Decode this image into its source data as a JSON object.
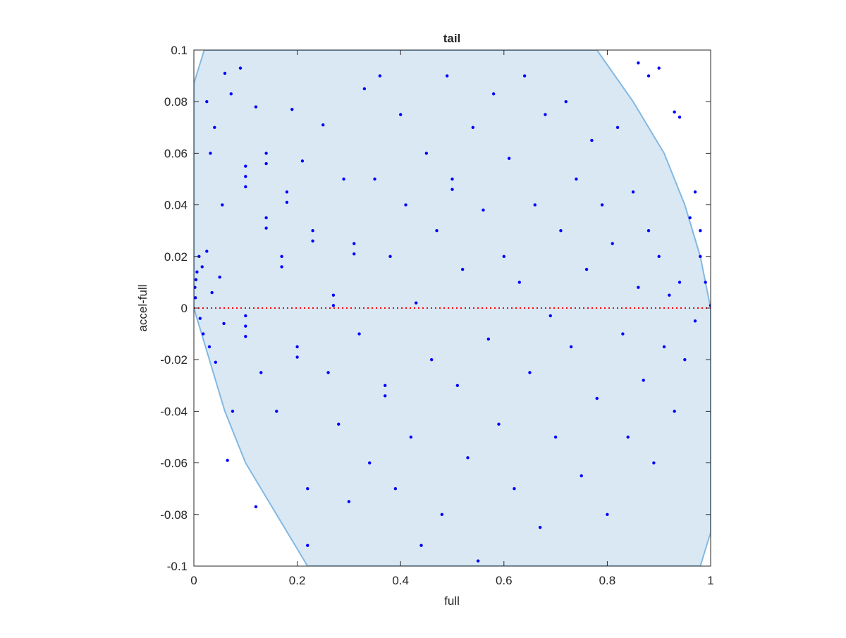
{
  "chart_data": {
    "type": "scatter",
    "title": "tail",
    "x_label": "full",
    "y_label": "accel-full",
    "x": [
      0.002,
      0.004,
      0.003,
      0.006,
      0.01,
      0.012,
      0.018,
      0.016,
      0.025,
      0.03,
      0.035,
      0.042,
      0.05,
      0.058,
      0.065,
      0.06,
      0.09,
      0.04,
      0.025,
      0.072,
      0.032,
      0.055,
      0.075,
      0.1,
      0.1,
      0.1,
      0.1,
      0.1,
      0.1,
      0.12,
      0.14,
      0.14,
      0.14,
      0.14,
      0.13,
      0.16,
      0.17,
      0.17,
      0.18,
      0.18,
      0.19,
      0.2,
      0.2,
      0.21,
      0.22,
      0.23,
      0.23,
      0.25,
      0.26,
      0.27,
      0.27,
      0.28,
      0.29,
      0.3,
      0.31,
      0.31,
      0.32,
      0.33,
      0.34,
      0.35,
      0.36,
      0.37,
      0.37,
      0.38,
      0.39,
      0.4,
      0.41,
      0.42,
      0.43,
      0.44,
      0.45,
      0.46,
      0.47,
      0.48,
      0.49,
      0.5,
      0.5,
      0.51,
      0.52,
      0.53,
      0.54,
      0.55,
      0.56,
      0.57,
      0.58,
      0.59,
      0.6,
      0.61,
      0.62,
      0.63,
      0.64,
      0.65,
      0.66,
      0.67,
      0.68,
      0.69,
      0.7,
      0.71,
      0.72,
      0.73,
      0.74,
      0.75,
      0.76,
      0.77,
      0.78,
      0.79,
      0.8,
      0.81,
      0.82,
      0.83,
      0.84,
      0.85,
      0.86,
      0.87,
      0.88,
      0.89,
      0.9,
      0.91,
      0.92,
      0.93,
      0.94,
      0.95,
      0.96,
      0.97,
      0.98,
      0.99,
      1.0,
      0.86,
      0.9,
      0.88,
      0.93,
      0.94,
      0.97,
      0.98,
      0.12,
      0.22
    ],
    "values": [
      0.008,
      0.011,
      0.004,
      0.014,
      0.02,
      -0.004,
      -0.01,
      0.016,
      0.022,
      -0.015,
      0.006,
      -0.021,
      0.012,
      -0.006,
      -0.059,
      0.091,
      0.093,
      0.07,
      0.08,
      0.083,
      0.06,
      0.04,
      -0.04,
      0.055,
      0.051,
      0.047,
      -0.003,
      -0.007,
      -0.011,
      0.078,
      0.06,
      0.056,
      0.035,
      0.031,
      -0.025,
      -0.04,
      0.02,
      0.016,
      0.045,
      0.041,
      0.077,
      -0.015,
      -0.019,
      0.057,
      -0.07,
      0.03,
      0.026,
      0.071,
      -0.025,
      0.005,
      0.001,
      -0.045,
      0.05,
      -0.075,
      0.025,
      0.021,
      -0.01,
      0.085,
      -0.06,
      0.05,
      0.09,
      -0.03,
      -0.034,
      0.02,
      -0.07,
      0.075,
      0.04,
      -0.05,
      0.002,
      -0.092,
      0.06,
      -0.02,
      0.03,
      -0.08,
      0.09,
      0.05,
      0.046,
      -0.03,
      0.015,
      -0.058,
      0.07,
      -0.098,
      0.038,
      -0.012,
      0.083,
      -0.045,
      0.02,
      0.058,
      -0.07,
      0.01,
      0.09,
      -0.025,
      0.04,
      -0.085,
      0.075,
      -0.003,
      -0.05,
      0.03,
      0.08,
      -0.015,
      0.05,
      -0.065,
      0.015,
      0.065,
      -0.035,
      0.04,
      -0.08,
      0.025,
      0.07,
      -0.01,
      -0.05,
      0.045,
      0.008,
      -0.028,
      0.03,
      -0.06,
      0.02,
      -0.015,
      0.005,
      -0.04,
      0.01,
      -0.02,
      0.035,
      -0.005,
      0.02,
      0.01,
      0.001,
      0.095,
      0.093,
      0.09,
      0.076,
      0.074,
      0.045,
      0.03,
      -0.077,
      -0.092
    ],
    "color": "#0000ff",
    "region": {
      "x": [
        0.02,
        0.78,
        0.85,
        0.91,
        0.95,
        0.98,
        1.0,
        1.0,
        0.98,
        0.22,
        0.16,
        0.1,
        0.06,
        0.03,
        0.0,
        0.0
      ],
      "y": [
        0.1,
        0.1,
        0.08,
        0.06,
        0.04,
        0.02,
        0.0,
        -0.087,
        -0.1,
        -0.1,
        -0.08,
        -0.06,
        -0.04,
        -0.02,
        0.0,
        0.087
      ],
      "color": "#dae8f4",
      "edge_color": "#82b9e2"
    },
    "zero_line": {
      "y": 0,
      "color": "#ff0000"
    },
    "xlim": [
      0,
      1
    ],
    "ylim": [
      -0.1,
      0.1
    ],
    "xticks": [
      0,
      0.2,
      0.4,
      0.6,
      0.8,
      1
    ],
    "yticks": [
      -0.1,
      -0.08,
      -0.06,
      -0.04,
      -0.02,
      0,
      0.02,
      0.04,
      0.06,
      0.08,
      0.1
    ]
  }
}
